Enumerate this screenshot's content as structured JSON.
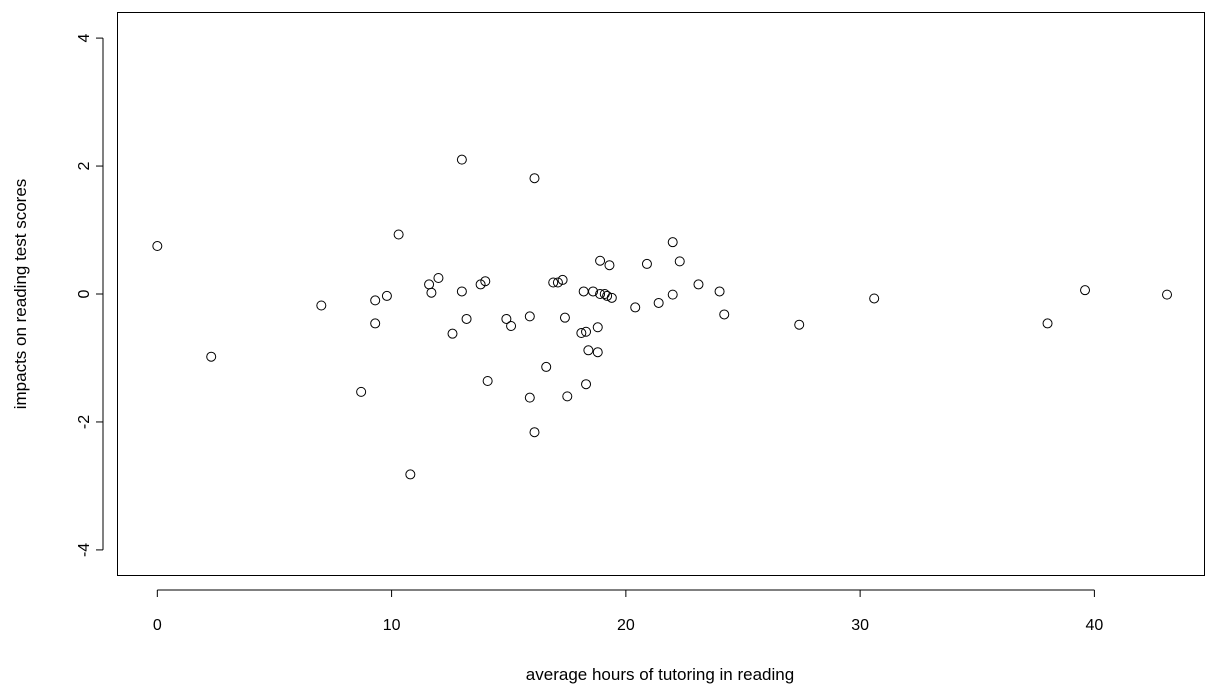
{
  "chart_data": {
    "type": "scatter",
    "title": "",
    "xlabel": "average hours of tutoring in reading",
    "ylabel": "impacts on reading test scores",
    "xlim": [
      -1.7,
      44.7
    ],
    "ylim": [
      -4.4,
      4.4
    ],
    "xticks": [
      0,
      10,
      20,
      30,
      40
    ],
    "yticks": [
      -4,
      -2,
      0,
      2,
      4
    ],
    "xtick_labels": [
      "0",
      "10",
      "20",
      "30",
      "40"
    ],
    "ytick_labels": [
      "-4",
      "-2",
      "0",
      "2",
      "4"
    ],
    "grid": false,
    "legend": "none",
    "points": [
      {
        "x": 0.0,
        "y": 0.75
      },
      {
        "x": 2.3,
        "y": -0.98
      },
      {
        "x": 7.0,
        "y": -0.18
      },
      {
        "x": 8.7,
        "y": -1.53
      },
      {
        "x": 9.3,
        "y": -0.1
      },
      {
        "x": 9.3,
        "y": -0.46
      },
      {
        "x": 9.8,
        "y": -0.03
      },
      {
        "x": 10.3,
        "y": 0.93
      },
      {
        "x": 10.8,
        "y": -2.82
      },
      {
        "x": 11.6,
        "y": 0.15
      },
      {
        "x": 11.7,
        "y": 0.02
      },
      {
        "x": 12.0,
        "y": 0.25
      },
      {
        "x": 12.6,
        "y": -0.62
      },
      {
        "x": 13.0,
        "y": 2.1
      },
      {
        "x": 13.0,
        "y": 0.04
      },
      {
        "x": 13.2,
        "y": -0.39
      },
      {
        "x": 13.8,
        "y": 0.15
      },
      {
        "x": 14.0,
        "y": 0.2
      },
      {
        "x": 14.1,
        "y": -1.36
      },
      {
        "x": 14.9,
        "y": -0.39
      },
      {
        "x": 15.1,
        "y": -0.5
      },
      {
        "x": 15.9,
        "y": -0.35
      },
      {
        "x": 15.9,
        "y": -1.62
      },
      {
        "x": 16.1,
        "y": 1.81
      },
      {
        "x": 16.1,
        "y": -2.16
      },
      {
        "x": 16.6,
        "y": -1.14
      },
      {
        "x": 16.9,
        "y": 0.18
      },
      {
        "x": 17.1,
        "y": 0.18
      },
      {
        "x": 17.3,
        "y": 0.22
      },
      {
        "x": 17.4,
        "y": -0.37
      },
      {
        "x": 17.5,
        "y": -1.6
      },
      {
        "x": 18.1,
        "y": -0.61
      },
      {
        "x": 18.2,
        "y": 0.04
      },
      {
        "x": 18.3,
        "y": -0.59
      },
      {
        "x": 18.3,
        "y": -1.41
      },
      {
        "x": 18.4,
        "y": -0.88
      },
      {
        "x": 18.6,
        "y": 0.04
      },
      {
        "x": 18.8,
        "y": -0.52
      },
      {
        "x": 18.8,
        "y": -0.91
      },
      {
        "x": 18.9,
        "y": 0.0
      },
      {
        "x": 18.9,
        "y": 0.52
      },
      {
        "x": 19.1,
        "y": 0.0
      },
      {
        "x": 19.2,
        "y": -0.03
      },
      {
        "x": 19.3,
        "y": 0.45
      },
      {
        "x": 19.4,
        "y": -0.06
      },
      {
        "x": 20.4,
        "y": -0.21
      },
      {
        "x": 20.9,
        "y": 0.47
      },
      {
        "x": 21.4,
        "y": -0.14
      },
      {
        "x": 22.0,
        "y": 0.81
      },
      {
        "x": 22.0,
        "y": -0.01
      },
      {
        "x": 22.3,
        "y": 0.51
      },
      {
        "x": 23.1,
        "y": 0.15
      },
      {
        "x": 24.0,
        "y": 0.04
      },
      {
        "x": 24.2,
        "y": -0.32
      },
      {
        "x": 27.4,
        "y": -0.48
      },
      {
        "x": 30.6,
        "y": -0.07
      },
      {
        "x": 38.0,
        "y": -0.46
      },
      {
        "x": 39.6,
        "y": 0.06
      },
      {
        "x": 43.1,
        "y": -0.01
      }
    ]
  }
}
